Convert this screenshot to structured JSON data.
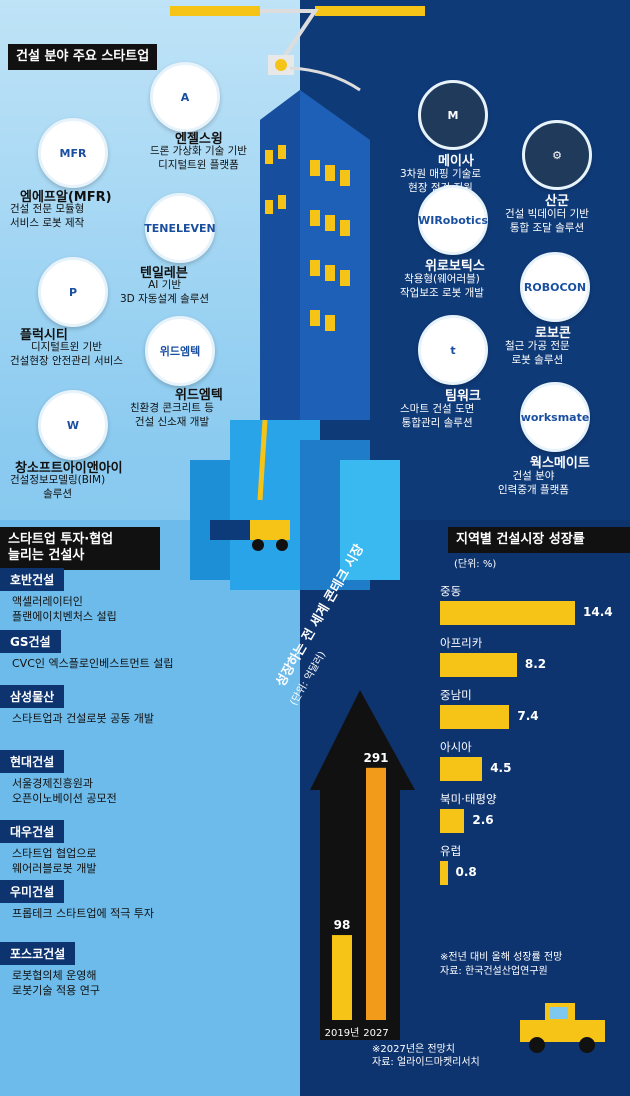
{
  "startups": {
    "title": "건설 분야 주요 스타트업",
    "left": [
      {
        "name": "엔젤스윙",
        "desc": "드론 가상화 기술 기반\n디지털트윈 플랫폼",
        "logo": "A"
      },
      {
        "name": "엠에프알(MFR)",
        "desc": "건설 전문 모듈형\n서비스 로봇 제작",
        "logo": "MFR"
      },
      {
        "name": "텐일레븐",
        "desc": "AI 기반\n3D 자동설계 솔루션",
        "logo": "TENELEVEN"
      },
      {
        "name": "플럭시티",
        "desc": "디지털트윈 기반\n건설현장 안전관리 서비스",
        "logo": "P"
      },
      {
        "name": "위드엠텍",
        "desc": "친환경 콘크리트 등\n건설 신소재 개발",
        "logo": "위드엠텍"
      },
      {
        "name": "창소프트아이앤아이",
        "desc": "건설정보모델링(BIM)\n솔루션",
        "logo": "W"
      }
    ],
    "right": [
      {
        "name": "메이사",
        "desc": "3차원 매핑 기술로\n현장 점검 지원",
        "logo": "M"
      },
      {
        "name": "산군",
        "desc": "건설 빅데이터 기반\n통합 조달 솔루션",
        "logo": "⚙"
      },
      {
        "name": "위로보틱스",
        "desc": "착용형(웨어러블)\n작업보조 로봇 개발",
        "logo": "WIRobotics"
      },
      {
        "name": "로보콘",
        "desc": "철근 가공 전문\n로봇 솔루션",
        "logo": "ROBOCON"
      },
      {
        "name": "팀워크",
        "desc": "스마트 건설 도면\n통합관리 솔루션",
        "logo": "t"
      },
      {
        "name": "웍스메이트",
        "desc": "건설 분야\n인력중개 플랫폼",
        "logo": "worksmate"
      }
    ]
  },
  "investment": {
    "title": "스타트업 투자·협업\n늘리는 건설사",
    "companies": [
      {
        "name": "호반건설",
        "desc": "액셀러레이터인\n플랜에이치벤처스 설립"
      },
      {
        "name": "GS건설",
        "desc": "CVC인 엑스플로인베스트먼트 설립"
      },
      {
        "name": "삼성물산",
        "desc": "스타트업과 건설로봇 공동 개발"
      },
      {
        "name": "현대건설",
        "desc": "서울경제진흥원과\n오픈이노베이션 공모전"
      },
      {
        "name": "대우건설",
        "desc": "스타트업 협업으로\n웨어러블로봇 개발"
      },
      {
        "name": "우미건설",
        "desc": "프롭테크 스타트업에 적극 투자"
      },
      {
        "name": "포스코건설",
        "desc": "로봇협의체 운영해\n로봇기술 적용 연구"
      }
    ]
  },
  "chart_data": [
    {
      "type": "bar",
      "title": "성장하는 전 세계 콘테크 시장",
      "unit": "(단위: 억달러)",
      "categories": [
        "2019년",
        "2027"
      ],
      "values": [
        98,
        291
      ],
      "note": "※2027년은 전망치",
      "source": "자료: 얼라이드마켓리서치"
    },
    {
      "type": "bar",
      "orientation": "horizontal",
      "title": "지역별 건설시장 성장률",
      "unit": "(단위: %)",
      "categories": [
        "중동",
        "아프리카",
        "중남미",
        "아시아",
        "북미·태평양",
        "유럽"
      ],
      "values": [
        14.4,
        8.2,
        7.4,
        4.5,
        2.6,
        0.8
      ],
      "note": "※전년 대비 올해 성장률 전망",
      "source": "자료: 한국건설산업연구원"
    }
  ],
  "colors": {
    "bar": "#f6c416",
    "navy": "#0e3470",
    "sky": "#6dbbea"
  }
}
